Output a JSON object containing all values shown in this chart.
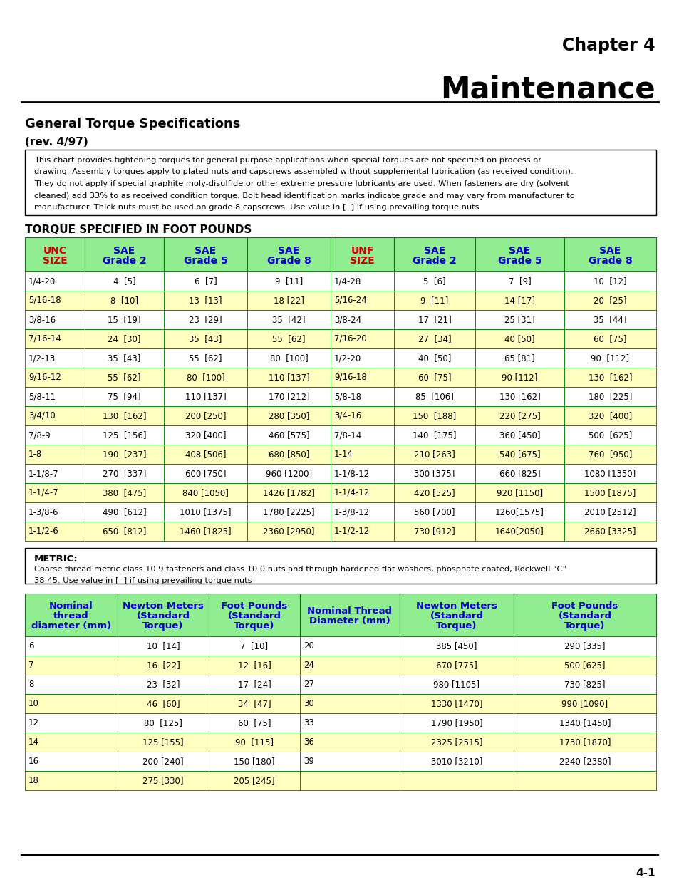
{
  "chapter": "Chapter 4",
  "title": "Maintenance",
  "section": "General Torque Specifications",
  "rev": "(rev. 4/97)",
  "note_text": "This chart provides tightening torques for general purpose applications when special torques are not specified on process or\ndrawing. Assembly torques apply to plated nuts and capscrews assembled without supplemental lubrication (as received condition).\nThey do not apply if special graphite moly-disulfide or other extreme pressure lubricants are used. When fasteners are dry (solvent\ncleaned) add 33% to as received condition torque. Bolt head identification marks indicate grade and may vary from manufacturer to\nmanufacturer. Thick nuts must be used on grade 8 capscrews. Use value in [  ] if using prevailing torque nuts",
  "torque_section_title": "TORQUE SPECIFIED IN FOOT POUNDS",
  "unc_headers": [
    "UNC\nSIZE",
    "SAE\nGrade 2",
    "SAE\nGrade 5",
    "SAE\nGrade 8",
    "UNF\nSIZE",
    "SAE\nGrade 2",
    "SAE\nGrade 5",
    "SAE\nGrade 8"
  ],
  "unc_data": [
    [
      "1/4-20",
      "4  [5]",
      "6  [7]",
      "9  [11]",
      "1/4-28",
      "5  [6]",
      "7  [9]",
      "10  [12]"
    ],
    [
      "5/16-18",
      "8  [10]",
      "13  [13]",
      "18 [22]",
      "5/16-24",
      "9  [11]",
      "14 [17]",
      "20  [25]"
    ],
    [
      "3/8-16",
      "15  [19]",
      "23  [29]",
      "35  [42]",
      "3/8-24",
      "17  [21]",
      "25 [31]",
      "35  [44]"
    ],
    [
      "7/16-14",
      "24  [30]",
      "35  [43]",
      "55  [62]",
      "7/16-20",
      "27  [34]",
      "40 [50]",
      "60  [75]"
    ],
    [
      "1/2-13",
      "35  [43]",
      "55  [62]",
      "80  [100]",
      "1/2-20",
      "40  [50]",
      "65 [81]",
      "90  [112]"
    ],
    [
      "9/16-12",
      "55  [62]",
      "80  [100]",
      "110 [137]",
      "9/16-18",
      "60  [75]",
      "90 [112]",
      "130  [162]"
    ],
    [
      "5/8-11",
      "75  [94]",
      "110 [137]",
      "170 [212]",
      "5/8-18",
      "85  [106]",
      "130 [162]",
      "180  [225]"
    ],
    [
      "3/4/10",
      "130  [162]",
      "200 [250]",
      "280 [350]",
      "3/4-16",
      "150  [188]",
      "220 [275]",
      "320  [400]"
    ],
    [
      "7/8-9",
      "125  [156]",
      "320 [400]",
      "460 [575]",
      "7/8-14",
      "140  [175]",
      "360 [450]",
      "500  [625]"
    ],
    [
      "1-8",
      "190  [237]",
      "408 [506]",
      "680 [850]",
      "1-14",
      "210 [263]",
      "540 [675]",
      "760  [950]"
    ],
    [
      "1-1/8-7",
      "270  [337]",
      "600 [750]",
      "960 [1200]",
      "1-1/8-12",
      "300 [375]",
      "660 [825]",
      "1080 [1350]"
    ],
    [
      "1-1/4-7",
      "380  [475]",
      "840 [1050]",
      "1426 [1782]",
      "1-1/4-12",
      "420 [525]",
      "920 [1150]",
      "1500 [1875]"
    ],
    [
      "1-3/8-6",
      "490  [612]",
      "1010 [1375]",
      "1780 [2225]",
      "1-3/8-12",
      "560 [700]",
      "1260[1575]",
      "2010 [2512]"
    ],
    [
      "1-1/2-6",
      "650  [812]",
      "1460 [1825]",
      "2360 [2950]",
      "1-1/2-12",
      "730 [912]",
      "1640[2050]",
      "2660 [3325]"
    ]
  ],
  "metric_note_bold": "METRIC:",
  "metric_note_body": "Coarse thread metric class 10.9 fasteners and class 10.0 nuts and through hardened flat washers, phosphate coated, Rockwell “C”\n38-45. Use value in [  ] if using prevailing torque nuts",
  "metric_headers": [
    "Nominal\nthread\ndiameter (mm)",
    "Newton Meters\n(Standard\nTorque)",
    "Foot Pounds\n(Standard\nTorque)",
    "Nominal Thread\nDiameter (mm)",
    "Newton Meters\n(Standard\nTorque)",
    "Foot Pounds\n(Standard\nTorque)"
  ],
  "metric_data": [
    [
      "6",
      "10  [14]",
      "7  [10]",
      "20",
      "385 [450]",
      "290 [335]"
    ],
    [
      "7",
      "16  [22]",
      "12  [16]",
      "24",
      "670 [775]",
      "500 [625]"
    ],
    [
      "8",
      "23  [32]",
      "17  [24]",
      "27",
      "980 [1105]",
      "730 [825]"
    ],
    [
      "10",
      "46  [60]",
      "34  [47]",
      "30",
      "1330 [1470]",
      "990 [1090]"
    ],
    [
      "12",
      "80  [125]",
      "60  [75]",
      "33",
      "1790 [1950]",
      "1340 [1450]"
    ],
    [
      "14",
      "125 [155]",
      "90  [115]",
      "36",
      "2325 [2515]",
      "1730 [1870]"
    ],
    [
      "16",
      "200 [240]",
      "150 [180]",
      "39",
      "3010 [3210]",
      "2240 [2380]"
    ],
    [
      "18",
      "275 [330]",
      "205 [245]",
      "",
      "",
      ""
    ]
  ],
  "page_number": "4-1",
  "bg_color": "#ffffff",
  "header_green": "#90EE90",
  "row_yellow": "#FFFFC0",
  "row_white": "#ffffff",
  "header_blue": "#0000CC",
  "header_red": "#CC0000",
  "border_green": "#008000"
}
